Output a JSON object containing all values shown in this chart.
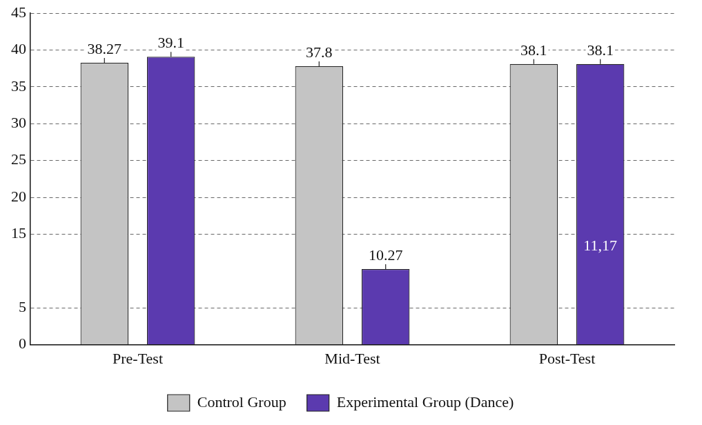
{
  "chart_data": {
    "type": "bar",
    "categories": [
      "Pre-Test",
      "Mid-Test",
      "Post-Test"
    ],
    "series": [
      {
        "name": "Control Group",
        "color": "#c4c4c4",
        "values": [
          38.27,
          37.8,
          38.1
        ]
      },
      {
        "name": "Experimental Group (Dance)",
        "color": "#5b3aaf",
        "values": [
          39.1,
          10.27,
          38.1
        ]
      }
    ],
    "data_labels": true,
    "ylim": [
      0,
      45
    ],
    "yticks": [
      0,
      5,
      15,
      20,
      25,
      30,
      35,
      40,
      45
    ],
    "grid": "y",
    "legend": "bottom",
    "annotations": [
      "11,17"
    ]
  }
}
